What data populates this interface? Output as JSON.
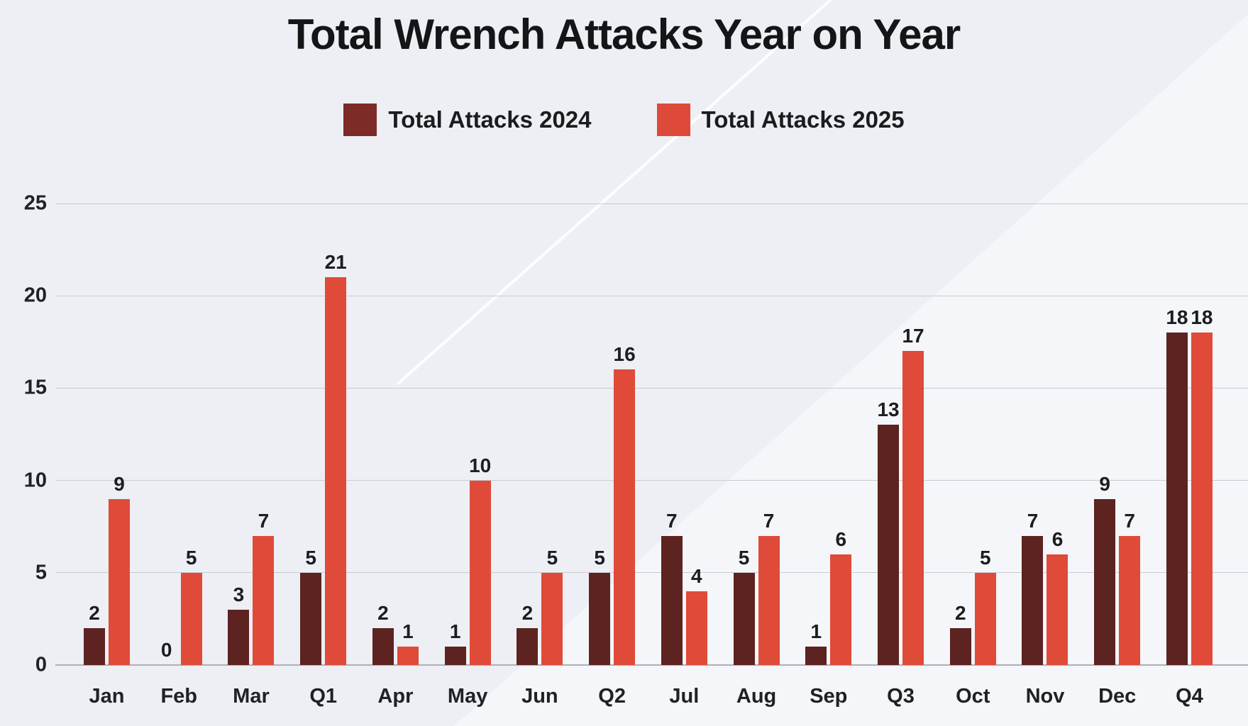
{
  "chart_data": {
    "type": "bar",
    "title": "Total Wrench Attacks Year on Year",
    "categories": [
      "Jan",
      "Feb",
      "Mar",
      "Q1",
      "Apr",
      "May",
      "Jun",
      "Q2",
      "Jul",
      "Aug",
      "Sep",
      "Q3",
      "Oct",
      "Nov",
      "Dec",
      "Q4"
    ],
    "series": [
      {
        "name": "Total Attacks 2024",
        "color": "#5c2321",
        "legend_color": "#7c2b27",
        "values": [
          2,
          0,
          3,
          5,
          2,
          1,
          2,
          5,
          7,
          5,
          1,
          13,
          2,
          7,
          9,
          18
        ]
      },
      {
        "name": "Total Attacks 2025",
        "color": "#e04a38",
        "legend_color": "#dd4a3a",
        "values": [
          9,
          5,
          7,
          21,
          1,
          10,
          5,
          16,
          4,
          7,
          6,
          17,
          5,
          6,
          7,
          18
        ]
      }
    ],
    "xlabel": "",
    "ylabel": "",
    "ylim": [
      0,
      25
    ],
    "y_ticks": [
      0,
      5,
      10,
      15,
      20,
      25
    ],
    "grid": true,
    "legend_position": "top-center",
    "show_value_labels": true
  }
}
